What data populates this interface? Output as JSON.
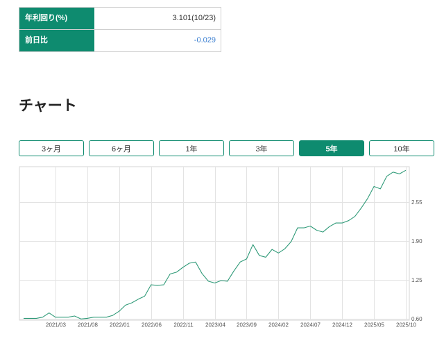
{
  "quote_table": {
    "rows": [
      {
        "label": "年利回り(%)",
        "value": "3.101(10/23)"
      },
      {
        "label": "前日比",
        "value": "-0.029"
      }
    ]
  },
  "chart_section": {
    "heading": "チャート",
    "tabs": [
      {
        "label": "3ヶ月",
        "active": false
      },
      {
        "label": "6ヶ月",
        "active": false
      },
      {
        "label": "1年",
        "active": false
      },
      {
        "label": "3年",
        "active": false
      },
      {
        "label": "5年",
        "active": true
      },
      {
        "label": "10年",
        "active": false
      }
    ]
  },
  "colors": {
    "accent": "#0e8b6f",
    "change_value": "#3b7fd1",
    "series_line": "#2f9a78",
    "grid": "#e3e3e3"
  },
  "chart_data": {
    "type": "line",
    "x": [
      "2020/10",
      "2020/11",
      "2020/12",
      "2021/01",
      "2021/02",
      "2021/03",
      "2021/04",
      "2021/05",
      "2021/06",
      "2021/07",
      "2021/08",
      "2021/09",
      "2021/10",
      "2021/11",
      "2021/12",
      "2022/01",
      "2022/02",
      "2022/03",
      "2022/04",
      "2022/05",
      "2022/06",
      "2022/07",
      "2022/08",
      "2022/09",
      "2022/10",
      "2022/11",
      "2022/12",
      "2023/01",
      "2023/02",
      "2023/03",
      "2023/04",
      "2023/05",
      "2023/06",
      "2023/07",
      "2023/08",
      "2023/09",
      "2023/10",
      "2023/11",
      "2023/12",
      "2024/01",
      "2024/02",
      "2024/03",
      "2024/04",
      "2024/05",
      "2024/06",
      "2024/07",
      "2024/08",
      "2024/09",
      "2024/10",
      "2024/11",
      "2024/12",
      "2025/01",
      "2025/02",
      "2025/03",
      "2025/04",
      "2025/05",
      "2025/06",
      "2025/07",
      "2025/08",
      "2025/09",
      "2025/10"
    ],
    "series": [
      {
        "values": [
          0.61,
          0.61,
          0.61,
          0.63,
          0.7,
          0.63,
          0.63,
          0.63,
          0.65,
          0.6,
          0.61,
          0.63,
          0.63,
          0.63,
          0.66,
          0.73,
          0.83,
          0.87,
          0.93,
          0.98,
          1.17,
          1.16,
          1.17,
          1.35,
          1.38,
          1.46,
          1.53,
          1.55,
          1.36,
          1.23,
          1.2,
          1.24,
          1.23,
          1.4,
          1.55,
          1.6,
          1.84,
          1.66,
          1.63,
          1.76,
          1.7,
          1.77,
          1.89,
          2.12,
          2.12,
          2.15,
          2.08,
          2.05,
          2.14,
          2.2,
          2.2,
          2.24,
          2.31,
          2.45,
          2.61,
          2.81,
          2.77,
          2.98,
          3.05,
          3.02,
          3.08
        ]
      }
    ],
    "x_ticks": [
      "2021/03",
      "2021/08",
      "2022/01",
      "2022/06",
      "2022/11",
      "2023/04",
      "2023/09",
      "2024/02",
      "2024/07",
      "2024/12",
      "2025/05",
      "2025/10"
    ],
    "y_ticks": [
      "0.60",
      "1.25",
      "1.90",
      "2.55"
    ],
    "ylim": [
      0.58,
      3.14
    ],
    "y_axis_position": "right",
    "grid": true
  }
}
